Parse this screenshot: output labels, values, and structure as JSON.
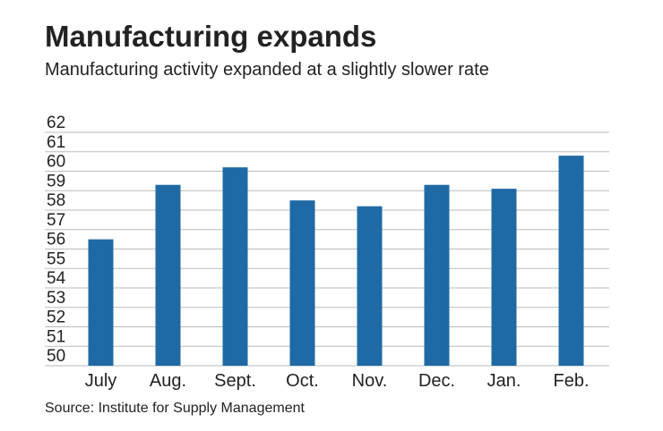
{
  "chart_data": {
    "type": "bar",
    "title": "Manufacturing expands",
    "subtitle": "Manufacturing activity expanded at a slightly slower rate",
    "source": "Source: Institute for Supply Management",
    "categories": [
      "July",
      "Aug.",
      "Sept.",
      "Oct.",
      "Nov.",
      "Dec.",
      "Jan.",
      "Feb."
    ],
    "values": [
      56.5,
      59.3,
      60.2,
      58.5,
      58.2,
      59.3,
      59.1,
      60.8
    ],
    "color": "#1f6aa5",
    "ylim": [
      50,
      62
    ],
    "yticks": [
      50,
      51,
      52,
      53,
      54,
      55,
      56,
      57,
      58,
      59,
      60,
      61,
      62
    ],
    "grid": true
  }
}
